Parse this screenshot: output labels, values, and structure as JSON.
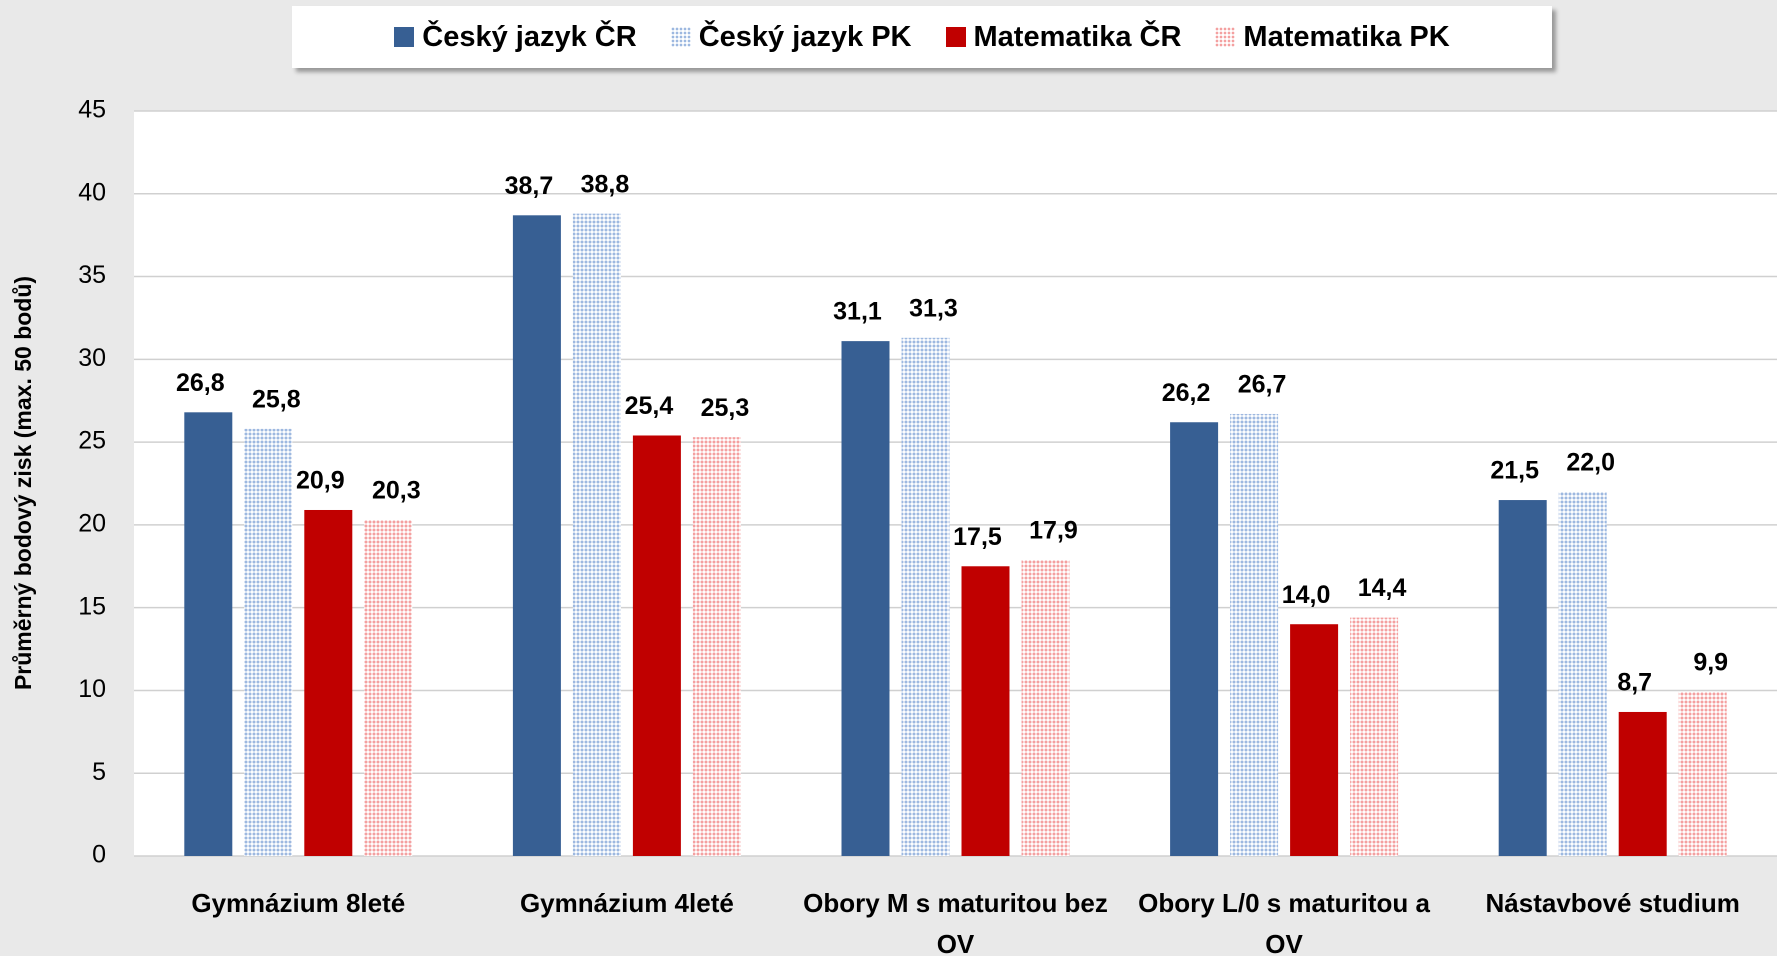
{
  "chart_data": {
    "type": "bar",
    "y_axis_label": "Průměrný bodový zisk (max. 50 bodů)",
    "categories": [
      "Gymnázium 8leté",
      "Gymnázium 4leté",
      "Obory M s maturitou bez OV",
      "Obory L/0 s maturitou a OV",
      "Nástavbové studium"
    ],
    "series": [
      {
        "name": "Český jazyk ČR",
        "color": "#375f93",
        "pattern": false,
        "values": [
          26.8,
          38.7,
          31.1,
          26.2,
          21.5
        ],
        "value_labels": [
          "26,8",
          "38,7",
          "31,1",
          "26,2",
          "21,5"
        ]
      },
      {
        "name": "Český jazyk PK",
        "color": "#9db8e0",
        "pattern": true,
        "values": [
          25.8,
          38.8,
          31.3,
          26.7,
          22.0
        ],
        "value_labels": [
          "25,8",
          "38,8",
          "31,3",
          "26,7",
          "22,0"
        ]
      },
      {
        "name": "Matematika ČR",
        "color": "#c00000",
        "pattern": false,
        "values": [
          20.9,
          25.4,
          17.5,
          14.0,
          8.7
        ],
        "value_labels": [
          "20,9",
          "25,4",
          "17,5",
          "14,0",
          "8,7"
        ]
      },
      {
        "name": "Matematika PK",
        "color": "#f4a0a0",
        "pattern": true,
        "values": [
          20.3,
          25.3,
          17.9,
          14.4,
          9.9
        ],
        "value_labels": [
          "20,3",
          "25,3",
          "17,9",
          "14,4",
          "9,9"
        ]
      }
    ],
    "ylim": [
      0,
      45
    ],
    "yticks": [
      0,
      5,
      10,
      15,
      20,
      25,
      30,
      35,
      40,
      45
    ],
    "grid": true,
    "legend": "top"
  }
}
